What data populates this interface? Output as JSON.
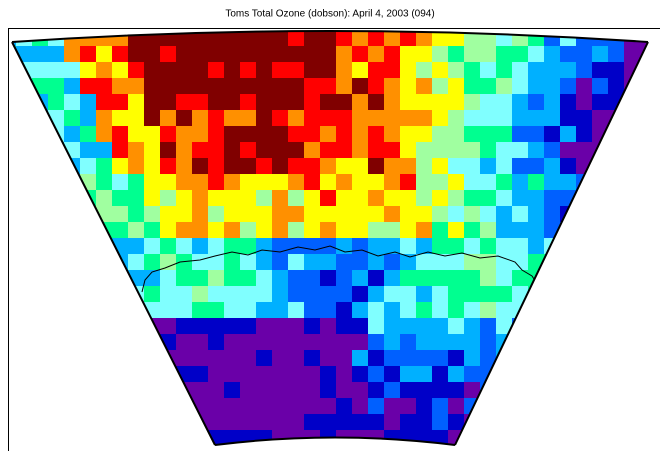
{
  "title": "Toms Total Ozone (dobson): April 4, 2003 (094)"
}
